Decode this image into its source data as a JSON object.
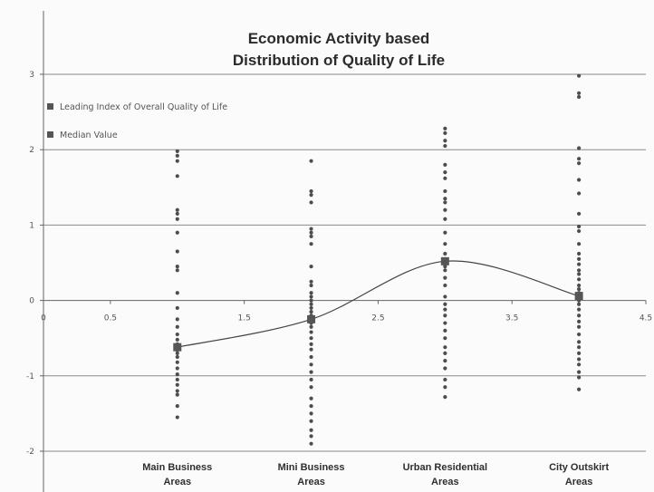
{
  "chart_data": {
    "type": "scatter",
    "title": {
      "lines": [
        "Economic Activity based",
        "Distribution of Quality of Life"
      ]
    },
    "x_axis": {
      "range": [
        0,
        4.5
      ],
      "ticks": [
        {
          "value": 0,
          "label": "0"
        },
        {
          "value": 0.5,
          "label": "0.5"
        },
        {
          "value": 1.5,
          "label": "1.5"
        },
        {
          "value": 2.5,
          "label": "2.5"
        },
        {
          "value": 3.5,
          "label": "3.5"
        },
        {
          "value": 4.5,
          "label": "4.5"
        }
      ]
    },
    "y_axis": {
      "range": [
        -2,
        3
      ],
      "ticks": [
        {
          "value": 3,
          "label": "3"
        },
        {
          "value": 2,
          "label": "2"
        },
        {
          "value": 1,
          "label": "1"
        },
        {
          "value": 0,
          "label": "0"
        },
        {
          "value": -1,
          "label": "-1"
        },
        {
          "value": -2,
          "label": "-2"
        }
      ]
    },
    "grid": "horizontal",
    "legend_placement": "top-left",
    "legend": [
      {
        "label": "Leading Index of Overall Quality of Life",
        "color": "#555555"
      },
      {
        "label": "Median Value",
        "color": "#555555"
      }
    ],
    "categories": [
      {
        "x": 1,
        "label_lines": [
          "Main Business",
          "Areas"
        ]
      },
      {
        "x": 2,
        "label_lines": [
          "Mini Business",
          "Areas"
        ]
      },
      {
        "x": 3,
        "label_lines": [
          "Urban Residential",
          "Areas"
        ]
      },
      {
        "x": 4,
        "label_lines": [
          "City Outskirt",
          "Areas"
        ]
      }
    ],
    "series": [
      {
        "name": "Leading Index of Overall Quality of Life",
        "marker": "dot",
        "color": "#555555",
        "points": [
          {
            "x": 1,
            "y": 1.98
          },
          {
            "x": 1,
            "y": 1.92
          },
          {
            "x": 1,
            "y": 1.85
          },
          {
            "x": 1,
            "y": 1.65
          },
          {
            "x": 1,
            "y": 1.2
          },
          {
            "x": 1,
            "y": 1.15
          },
          {
            "x": 1,
            "y": 1.08
          },
          {
            "x": 1,
            "y": 0.9
          },
          {
            "x": 1,
            "y": 0.65
          },
          {
            "x": 1,
            "y": 0.45
          },
          {
            "x": 1,
            "y": 0.4
          },
          {
            "x": 1,
            "y": 0.1
          },
          {
            "x": 1,
            "y": -0.1
          },
          {
            "x": 1,
            "y": -0.25
          },
          {
            "x": 1,
            "y": -0.35
          },
          {
            "x": 1,
            "y": -0.45
          },
          {
            "x": 1,
            "y": -0.52
          },
          {
            "x": 1,
            "y": -0.58
          },
          {
            "x": 1,
            "y": -0.62
          },
          {
            "x": 1,
            "y": -0.66
          },
          {
            "x": 1,
            "y": -0.7
          },
          {
            "x": 1,
            "y": -0.75
          },
          {
            "x": 1,
            "y": -0.82
          },
          {
            "x": 1,
            "y": -0.9
          },
          {
            "x": 1,
            "y": -0.98
          },
          {
            "x": 1,
            "y": -1.05
          },
          {
            "x": 1,
            "y": -1.12
          },
          {
            "x": 1,
            "y": -1.2
          },
          {
            "x": 1,
            "y": -1.25
          },
          {
            "x": 1,
            "y": -1.4
          },
          {
            "x": 1,
            "y": -1.55
          },
          {
            "x": 2,
            "y": 1.85
          },
          {
            "x": 2,
            "y": 1.45
          },
          {
            "x": 2,
            "y": 1.4
          },
          {
            "x": 2,
            "y": 1.3
          },
          {
            "x": 2,
            "y": 0.95
          },
          {
            "x": 2,
            "y": 0.9
          },
          {
            "x": 2,
            "y": 0.85
          },
          {
            "x": 2,
            "y": 0.75
          },
          {
            "x": 2,
            "y": 0.45
          },
          {
            "x": 2,
            "y": 0.25
          },
          {
            "x": 2,
            "y": 0.2
          },
          {
            "x": 2,
            "y": 0.1
          },
          {
            "x": 2,
            "y": 0.05
          },
          {
            "x": 2,
            "y": 0.0
          },
          {
            "x": 2,
            "y": -0.05
          },
          {
            "x": 2,
            "y": -0.1
          },
          {
            "x": 2,
            "y": -0.15
          },
          {
            "x": 2,
            "y": -0.2
          },
          {
            "x": 2,
            "y": -0.25
          },
          {
            "x": 2,
            "y": -0.3
          },
          {
            "x": 2,
            "y": -0.35
          },
          {
            "x": 2,
            "y": -0.42
          },
          {
            "x": 2,
            "y": -0.5
          },
          {
            "x": 2,
            "y": -0.58
          },
          {
            "x": 2,
            "y": -0.65
          },
          {
            "x": 2,
            "y": -0.75
          },
          {
            "x": 2,
            "y": -0.85
          },
          {
            "x": 2,
            "y": -0.95
          },
          {
            "x": 2,
            "y": -1.05
          },
          {
            "x": 2,
            "y": -1.15
          },
          {
            "x": 2,
            "y": -1.3
          },
          {
            "x": 2,
            "y": -1.4
          },
          {
            "x": 2,
            "y": -1.5
          },
          {
            "x": 2,
            "y": -1.6
          },
          {
            "x": 2,
            "y": -1.72
          },
          {
            "x": 2,
            "y": -1.8
          },
          {
            "x": 2,
            "y": -1.9
          },
          {
            "x": 3,
            "y": 2.28
          },
          {
            "x": 3,
            "y": 2.22
          },
          {
            "x": 3,
            "y": 2.12
          },
          {
            "x": 3,
            "y": 2.05
          },
          {
            "x": 3,
            "y": 1.8
          },
          {
            "x": 3,
            "y": 1.7
          },
          {
            "x": 3,
            "y": 1.62
          },
          {
            "x": 3,
            "y": 1.45
          },
          {
            "x": 3,
            "y": 1.35
          },
          {
            "x": 3,
            "y": 1.3
          },
          {
            "x": 3,
            "y": 1.2
          },
          {
            "x": 3,
            "y": 1.08
          },
          {
            "x": 3,
            "y": 0.9
          },
          {
            "x": 3,
            "y": 0.75
          },
          {
            "x": 3,
            "y": 0.62
          },
          {
            "x": 3,
            "y": 0.55
          },
          {
            "x": 3,
            "y": 0.5
          },
          {
            "x": 3,
            "y": 0.45
          },
          {
            "x": 3,
            "y": 0.4
          },
          {
            "x": 3,
            "y": 0.3
          },
          {
            "x": 3,
            "y": 0.2
          },
          {
            "x": 3,
            "y": 0.05
          },
          {
            "x": 3,
            "y": -0.05
          },
          {
            "x": 3,
            "y": -0.12
          },
          {
            "x": 3,
            "y": -0.2
          },
          {
            "x": 3,
            "y": -0.3
          },
          {
            "x": 3,
            "y": -0.4
          },
          {
            "x": 3,
            "y": -0.5
          },
          {
            "x": 3,
            "y": -0.62
          },
          {
            "x": 3,
            "y": -0.7
          },
          {
            "x": 3,
            "y": -0.8
          },
          {
            "x": 3,
            "y": -0.9
          },
          {
            "x": 3,
            "y": -1.05
          },
          {
            "x": 3,
            "y": -1.15
          },
          {
            "x": 3,
            "y": -1.28
          },
          {
            "x": 4,
            "y": 2.98
          },
          {
            "x": 4,
            "y": 2.75
          },
          {
            "x": 4,
            "y": 2.7
          },
          {
            "x": 4,
            "y": 2.02
          },
          {
            "x": 4,
            "y": 1.88
          },
          {
            "x": 4,
            "y": 1.82
          },
          {
            "x": 4,
            "y": 1.6
          },
          {
            "x": 4,
            "y": 1.42
          },
          {
            "x": 4,
            "y": 1.15
          },
          {
            "x": 4,
            "y": 0.98
          },
          {
            "x": 4,
            "y": 0.92
          },
          {
            "x": 4,
            "y": 0.75
          },
          {
            "x": 4,
            "y": 0.62
          },
          {
            "x": 4,
            "y": 0.55
          },
          {
            "x": 4,
            "y": 0.48
          },
          {
            "x": 4,
            "y": 0.4
          },
          {
            "x": 4,
            "y": 0.35
          },
          {
            "x": 4,
            "y": 0.28
          },
          {
            "x": 4,
            "y": 0.2
          },
          {
            "x": 4,
            "y": 0.15
          },
          {
            "x": 4,
            "y": 0.1
          },
          {
            "x": 4,
            "y": 0.05
          },
          {
            "x": 4,
            "y": 0.0
          },
          {
            "x": 4,
            "y": -0.05
          },
          {
            "x": 4,
            "y": -0.12
          },
          {
            "x": 4,
            "y": -0.2
          },
          {
            "x": 4,
            "y": -0.28
          },
          {
            "x": 4,
            "y": -0.35
          },
          {
            "x": 4,
            "y": -0.45
          },
          {
            "x": 4,
            "y": -0.55
          },
          {
            "x": 4,
            "y": -0.62
          },
          {
            "x": 4,
            "y": -0.7
          },
          {
            "x": 4,
            "y": -0.78
          },
          {
            "x": 4,
            "y": -0.85
          },
          {
            "x": 4,
            "y": -0.95
          },
          {
            "x": 4,
            "y": -1.02
          },
          {
            "x": 4,
            "y": -1.18
          }
        ]
      },
      {
        "name": "Median Value",
        "marker": "square",
        "color": "#555555",
        "line": "smooth",
        "points": [
          {
            "x": 1,
            "y": -0.62
          },
          {
            "x": 2,
            "y": -0.25
          },
          {
            "x": 3,
            "y": 0.52
          },
          {
            "x": 4,
            "y": 0.06
          }
        ]
      }
    ]
  }
}
